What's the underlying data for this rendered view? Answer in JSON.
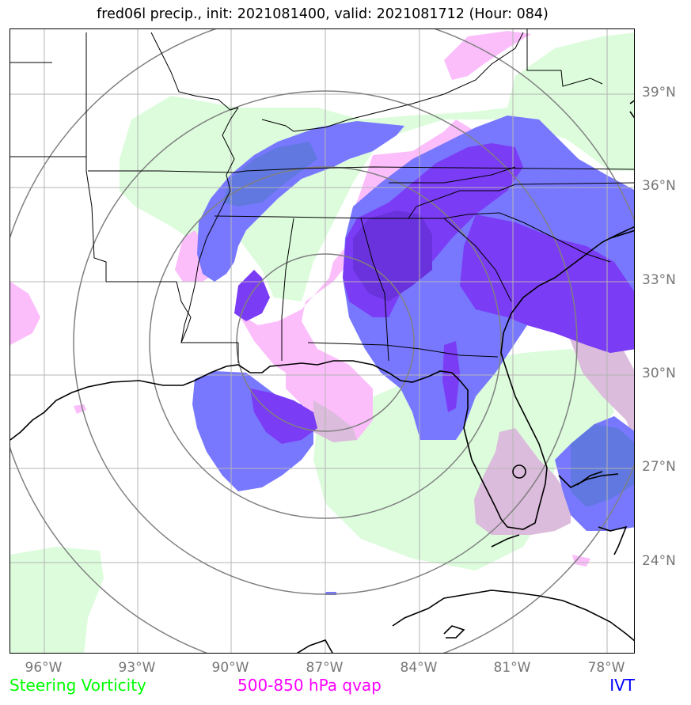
{
  "title": "fred06l precip., init: 2021081400, valid: 2021081712 (Hour: 084)",
  "latitude_labels": [
    "39°N",
    "36°N",
    "33°N",
    "30°N",
    "27°N",
    "24°N"
  ],
  "longitude_labels": [
    "96°W",
    "93°W",
    "90°W",
    "87°W",
    "84°W",
    "81°W",
    "78°W"
  ],
  "legend": [
    {
      "label": "Steering Vorticity",
      "color": "#00ff00"
    },
    {
      "label": "500-850 hPa qvap",
      "color": "#ff00ff"
    },
    {
      "label": "IVT",
      "color": "#0000ff"
    }
  ],
  "layer_colors": {
    "steering_vorticity": "#dcfcdc",
    "qvap": "#fbbefb",
    "qvap_overlap": "#dcbcdc",
    "ivt": "#7878ff",
    "ivt_overlap": "#6078e0",
    "ivt_strong": "#7b3cf5",
    "ivt_strong_overlap": "#6a32dc",
    "range_rings": "#808080",
    "gridlines": "#b4b4b4"
  }
}
